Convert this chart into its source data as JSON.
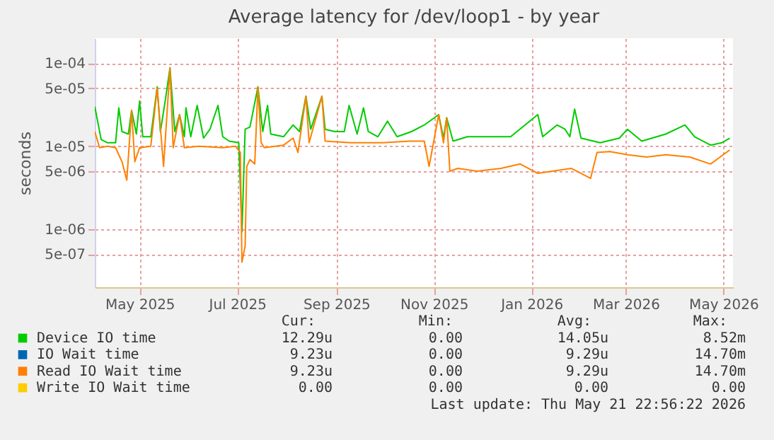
{
  "chart_data": {
    "type": "line",
    "title": "Average latency for /dev/loop1 - by year",
    "ylabel": "seconds",
    "xlim": [
      "2025-04-03",
      "2026-05-07"
    ],
    "ylim": [
      2e-07,
      0.0002
    ],
    "log": true,
    "grid": true,
    "legend": "bottom",
    "xticks": [
      {
        "value": "2025-05-01",
        "label": "May 2025"
      },
      {
        "value": "2025-07-01",
        "label": "Jul 2025"
      },
      {
        "value": "2025-09-01",
        "label": "Sep 2025"
      },
      {
        "value": "2025-11-01",
        "label": "Nov 2025"
      },
      {
        "value": "2026-01-01",
        "label": "Jan 2026"
      },
      {
        "value": "2026-03-01",
        "label": "Mar 2026"
      },
      {
        "value": "2026-05-01",
        "label": "May 2026"
      }
    ],
    "yticks": [
      {
        "value": 5e-07,
        "label": "5e-07"
      },
      {
        "value": 1e-06,
        "label": "1e-06"
      },
      {
        "value": 5e-06,
        "label": "5e-06"
      },
      {
        "value": 1e-05,
        "label": "1e-05"
      },
      {
        "value": 5e-05,
        "label": "5e-05"
      },
      {
        "value": 0.0001,
        "label": "1e-04"
      }
    ],
    "series": [
      {
        "name": "Device IO time",
        "color": "#00cc00",
        "x": [
          "2025-04-03",
          "2025-04-07",
          "2025-04-11",
          "2025-04-16",
          "2025-04-18",
          "2025-04-20",
          "2025-04-24",
          "2025-04-26",
          "2025-04-29",
          "2025-05-01",
          "2025-05-03",
          "2025-05-08",
          "2025-05-12",
          "2025-05-14",
          "2025-05-17",
          "2025-05-20",
          "2025-05-23",
          "2025-05-26",
          "2025-05-29",
          "2025-05-30",
          "2025-06-02",
          "2025-06-06",
          "2025-06-10",
          "2025-06-14",
          "2025-06-19",
          "2025-06-22",
          "2025-06-26",
          "2025-07-02",
          "2025-07-04",
          "2025-07-06",
          "2025-07-09",
          "2025-07-14",
          "2025-07-17",
          "2025-07-20",
          "2025-07-22",
          "2025-07-30",
          "2025-08-05",
          "2025-08-09",
          "2025-08-13",
          "2025-08-16",
          "2025-08-23",
          "2025-08-25",
          "2025-08-31",
          "2025-09-06",
          "2025-09-09",
          "2025-09-14",
          "2025-09-18",
          "2025-09-21",
          "2025-09-27",
          "2025-10-03",
          "2025-10-09",
          "2025-10-18",
          "2025-10-26",
          "2025-11-04",
          "2025-11-07",
          "2025-11-09",
          "2025-11-13",
          "2025-11-22",
          "2025-12-04",
          "2025-12-19",
          "2026-01-05",
          "2026-01-08",
          "2026-01-17",
          "2026-01-22",
          "2026-01-25",
          "2026-01-28",
          "2026-02-01",
          "2026-02-13",
          "2026-02-25",
          "2026-03-02",
          "2026-03-11",
          "2026-03-26",
          "2026-04-07",
          "2026-04-13",
          "2026-04-23",
          "2026-04-30",
          "2026-05-05"
        ],
        "values": [
          3e-05,
          1.2e-05,
          1.1e-05,
          1.1e-05,
          2.9e-05,
          1.5e-05,
          1.4e-05,
          2.7e-05,
          1.4e-05,
          3.5e-05,
          1.3e-05,
          1.3e-05,
          5.2e-05,
          1.5e-05,
          3.5e-05,
          8.8e-05,
          1.5e-05,
          2.4e-05,
          1.3e-05,
          2.9e-05,
          1.3e-05,
          3.1e-05,
          1.25e-05,
          1.6e-05,
          3.1e-05,
          1.3e-05,
          1.15e-05,
          1.1e-05,
          9.3e-07,
          1.6e-05,
          1.7e-05,
          5.2e-05,
          1.5e-05,
          3.1e-05,
          1.4e-05,
          1.3e-05,
          1.8e-05,
          1.5e-05,
          4e-05,
          1.6e-05,
          4e-05,
          1.6e-05,
          1.5e-05,
          1.5e-05,
          3.1e-05,
          1.4e-05,
          2.9e-05,
          1.5e-05,
          1.3e-05,
          2e-05,
          1.3e-05,
          1.5e-05,
          1.8e-05,
          2.4e-05,
          1.25e-05,
          2.2e-05,
          1.15e-05,
          1.3e-05,
          1.3e-05,
          1.3e-05,
          2.4e-05,
          1.3e-05,
          1.8e-05,
          1.6e-05,
          1.3e-05,
          2.8e-05,
          1.25e-05,
          1.1e-05,
          1.25e-05,
          1.6e-05,
          1.15e-05,
          1.4e-05,
          1.8e-05,
          1.3e-05,
          1.03e-05,
          1.1e-05,
          1.25e-05
        ]
      },
      {
        "name": "IO Wait time",
        "color": "#0066b3"
      },
      {
        "name": "Read IO Wait time",
        "color": "#ff8000",
        "x": [
          "2025-04-03",
          "2025-04-06",
          "2025-04-11",
          "2025-04-16",
          "2025-04-20",
          "2025-04-23",
          "2025-04-26",
          "2025-04-28",
          "2025-05-01",
          "2025-05-08",
          "2025-05-12",
          "2025-05-16",
          "2025-05-20",
          "2025-05-22",
          "2025-05-26",
          "2025-05-29",
          "2025-06-07",
          "2025-06-22",
          "2025-06-30",
          "2025-07-03",
          "2025-07-04",
          "2025-07-06",
          "2025-07-07",
          "2025-07-09",
          "2025-07-12",
          "2025-07-14",
          "2025-07-16",
          "2025-07-18",
          "2025-07-30",
          "2025-08-05",
          "2025-08-08",
          "2025-08-13",
          "2025-08-15",
          "2025-08-23",
          "2025-08-25",
          "2025-09-10",
          "2025-09-30",
          "2025-10-17",
          "2025-10-26",
          "2025-10-29",
          "2025-11-04",
          "2025-11-07",
          "2025-11-09",
          "2025-11-11",
          "2025-11-16",
          "2025-11-28",
          "2025-12-13",
          "2025-12-25",
          "2026-01-05",
          "2026-01-14",
          "2026-01-26",
          "2026-02-07",
          "2026-02-11",
          "2026-02-19",
          "2026-03-02",
          "2026-03-14",
          "2026-03-26",
          "2026-04-10",
          "2026-04-23",
          "2026-05-05"
        ],
        "values": [
          1.5e-05,
          9.6e-06,
          1e-05,
          9.6e-06,
          6.5e-06,
          3.9e-06,
          2.7e-05,
          6.5e-06,
          9.6e-06,
          1e-05,
          5e-05,
          5.7e-06,
          8.8e-05,
          9.6e-06,
          2.4e-05,
          9.6e-06,
          1e-05,
          9.6e-06,
          1e-05,
          8.4e-06,
          4e-07,
          6.3e-07,
          5.7e-06,
          6.9e-06,
          6.1e-06,
          5.2e-05,
          1.1e-05,
          9.6e-06,
          1.03e-05,
          1.25e-05,
          8.4e-06,
          4e-05,
          1.1e-05,
          4e-05,
          1.15e-05,
          1.1e-05,
          1.1e-05,
          1.15e-05,
          1.15e-05,
          5.7e-06,
          2.4e-05,
          1.1e-05,
          2.2e-05,
          5e-06,
          5.4e-06,
          5e-06,
          5.4e-06,
          6.1e-06,
          4.7e-06,
          5e-06,
          5.4e-06,
          4.1e-06,
          8.4e-06,
          8.6e-06,
          7.9e-06,
          7.4e-06,
          7.9e-06,
          7.4e-06,
          6.1e-06,
          9e-06
        ]
      },
      {
        "name": "Write IO Wait time",
        "color": "#ffcc00"
      }
    ],
    "annotations": [
      "Cur:",
      "Min:",
      "Avg:",
      "Max:",
      "12.29u",
      "0.00",
      "14.05u",
      "8.52m",
      "9.23u",
      "0.00",
      "9.29u",
      "14.70m",
      "9.23u",
      "0.00",
      "9.29u",
      "14.70m",
      "0.00",
      "0.00",
      "0.00",
      "0.00",
      "Last update: Thu May 21 22:56:22 2026"
    ]
  }
}
